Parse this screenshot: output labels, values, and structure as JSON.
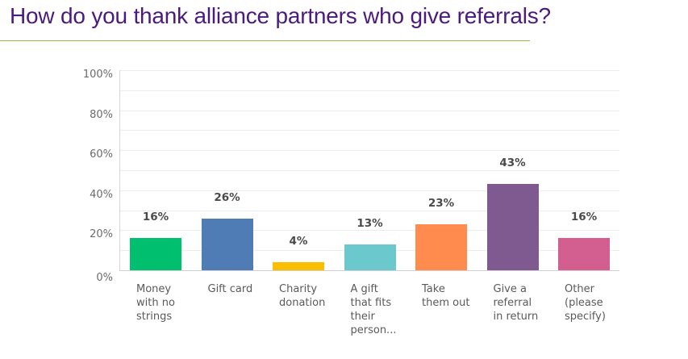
{
  "title": "How do you thank alliance partners who give referrals?",
  "chart_data": {
    "type": "bar",
    "title": "How do you thank alliance partners who give referrals?",
    "xlabel": "",
    "ylabel": "",
    "ylim": [
      0,
      100
    ],
    "yticks": [
      "0%",
      "20%",
      "40%",
      "60%",
      "80%",
      "100%"
    ],
    "grid": true,
    "categories": [
      "Money\nwith no\nstrings",
      "Gift card",
      "Charity\ndonation",
      "A gift\nthat fits\ntheir\nperson...",
      "Take\nthem out",
      "Give a\nreferral\nin return",
      "Other\n(please\nspecify)"
    ],
    "values": [
      16,
      26,
      4,
      13,
      23,
      43,
      16
    ],
    "labels": [
      "16%",
      "26%",
      "4%",
      "13%",
      "23%",
      "43%",
      "16%"
    ],
    "colors": [
      "#00bf6f",
      "#507cb6",
      "#f9be00",
      "#6bc8cd",
      "#ff8b4f",
      "#7f5a90",
      "#d25f90"
    ]
  }
}
